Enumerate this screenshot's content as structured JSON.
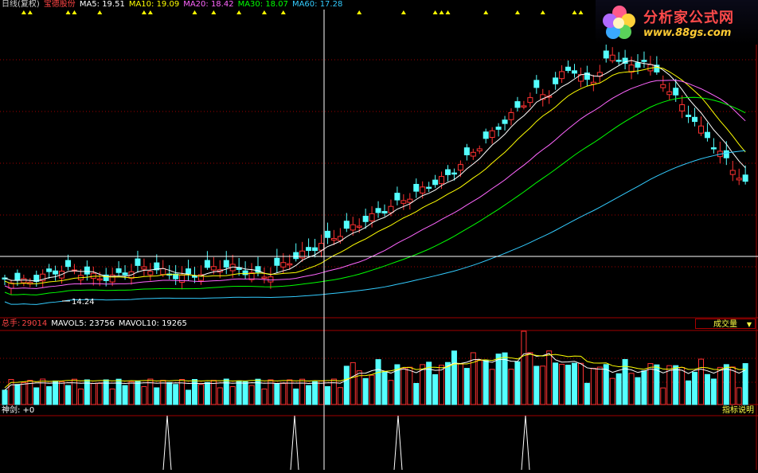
{
  "main_header": {
    "period": "日线(复权)",
    "stock_name": "宝德股份",
    "ma": [
      {
        "label": "MA5: 19.51",
        "color": "#ffffff"
      },
      {
        "label": "MA10: 19.09",
        "color": "#ffff00"
      },
      {
        "label": "MA20: 18.42",
        "color": "#ff66ff"
      },
      {
        "label": "MA30: 18.07",
        "color": "#00ff00"
      },
      {
        "label": "MA60: 17.28",
        "color": "#33ccff"
      }
    ],
    "low_marker": "14.24"
  },
  "volume_header": {
    "total": {
      "label": "总手:",
      "value": "29014"
    },
    "mavol5": "MAVOL5: 23756",
    "mavol10": "MAVOL10: 19265",
    "selector": "成交量"
  },
  "indicator_header": {
    "label": "神剑: +0",
    "help_link": "指标说明"
  },
  "logo": {
    "title": "分析家公式网",
    "url": "www.88gs.com"
  },
  "colors": {
    "up": "#ff3232",
    "down": "#54ffff",
    "grid": "#a00000",
    "crosshair": "#ffffff",
    "signal": "#ffff00"
  },
  "chart_data": {
    "type": "candlestick",
    "close_start": 16.8,
    "close_end": 19.51,
    "low_point": 14.24,
    "ma_values": {
      "MA5": 19.51,
      "MA10": 19.09,
      "MA20": 18.42,
      "MA30": 18.07,
      "MA60": 17.28
    },
    "volume_last": 29014,
    "mavol5": 23756,
    "mavol10": 19265
  }
}
